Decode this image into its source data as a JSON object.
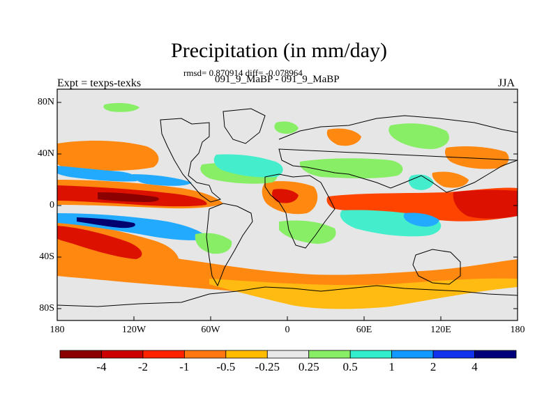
{
  "title": "Precipitation (in mm/day)",
  "stats": "rmsd= 0.870914 diff= -0.078964",
  "runs": "091_9_MaBP - 091_9_MaBP",
  "experiment": "Expt = texps-texks",
  "season": "JJA",
  "map": {
    "lon_range": [
      -180,
      180
    ],
    "lat_range": [
      -90,
      90
    ],
    "x_ticks": [
      "180",
      "120W",
      "60W",
      "0",
      "60E",
      "120E",
      "180"
    ],
    "y_ticks": [
      "80N",
      "40N",
      "0",
      "40S",
      "80S"
    ]
  },
  "colorbar": {
    "labels": [
      "-4",
      "-2",
      "-1",
      "-0.5",
      "-0.25",
      "0.25",
      "0.5",
      "1",
      "2",
      "4"
    ],
    "colors": [
      "#8b0000",
      "#cc0000",
      "#ff2200",
      "#ff7711",
      "#ffbb00",
      "#e8e8e8",
      "#88ee66",
      "#33eecc",
      "#1199ff",
      "#1133ee",
      "#00007a"
    ]
  },
  "palette": {
    "background": "#e6e6e6",
    "darkred": "#8b0000",
    "red": "#dd1100",
    "orangered": "#ff4400",
    "orange": "#ff8811",
    "yellow": "#ffbb11",
    "green": "#88ee66",
    "cyan": "#44eecc",
    "lightblue": "#22aaff",
    "blue": "#1133ee",
    "navy": "#00006e"
  }
}
